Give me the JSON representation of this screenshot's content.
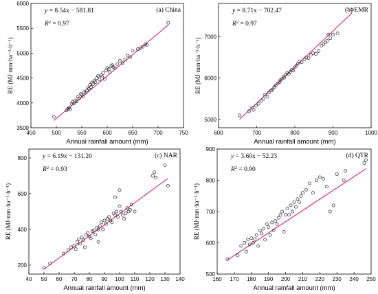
{
  "chart_data": [
    {
      "type": "scatter",
      "title": "(a) China",
      "equation": "y = 8.54x − 581.81",
      "r2": "R² = 0.97",
      "eq_y": "y",
      "eq_rhs": " = 8.54x − 581.81",
      "r2_label": "R",
      "r2_rhs": " = 0.97",
      "xlabel": "Annual rainfall amount (mm)",
      "ylabel": "RE (MJ·mm·ha⁻¹·h⁻¹)",
      "xlim": [
        450,
        750
      ],
      "ylim": [
        3500,
        6000
      ],
      "xticks": [
        450,
        500,
        550,
        600,
        650,
        700,
        750
      ],
      "yticks": [
        3500,
        4000,
        4500,
        5000,
        5500,
        6000
      ],
      "fit": {
        "slope": 8.54,
        "intercept": -581.81,
        "x_range": [
          495,
          720
        ]
      },
      "points": [
        [
          495,
          3720
        ],
        [
          520,
          3850
        ],
        [
          523,
          3880
        ],
        [
          525,
          3900
        ],
        [
          527,
          3870
        ],
        [
          530,
          3980
        ],
        [
          532,
          4020
        ],
        [
          535,
          3990
        ],
        [
          537,
          4050
        ],
        [
          540,
          4030
        ],
        [
          542,
          4120
        ],
        [
          545,
          4090
        ],
        [
          548,
          4180
        ],
        [
          550,
          4160
        ],
        [
          552,
          4130
        ],
        [
          555,
          4220
        ],
        [
          557,
          4200
        ],
        [
          560,
          4250
        ],
        [
          562,
          4300
        ],
        [
          564,
          4280
        ],
        [
          566,
          4360
        ],
        [
          568,
          4320
        ],
        [
          570,
          4410
        ],
        [
          572,
          4380
        ],
        [
          575,
          4450
        ],
        [
          577,
          4420
        ],
        [
          580,
          4500
        ],
        [
          582,
          4540
        ],
        [
          585,
          4470
        ],
        [
          588,
          4560
        ],
        [
          590,
          4530
        ],
        [
          592,
          4600
        ],
        [
          595,
          4480
        ],
        [
          598,
          4650
        ],
        [
          600,
          4700
        ],
        [
          603,
          4680
        ],
        [
          605,
          4620
        ],
        [
          608,
          4740
        ],
        [
          610,
          4760
        ],
        [
          612,
          4720
        ],
        [
          615,
          4700
        ],
        [
          620,
          4780
        ],
        [
          625,
          4850
        ],
        [
          630,
          4800
        ],
        [
          635,
          4870
        ],
        [
          640,
          4950
        ],
        [
          645,
          4920
        ],
        [
          650,
          5050
        ],
        [
          660,
          5080
        ],
        [
          665,
          5100
        ],
        [
          670,
          5130
        ],
        [
          675,
          5180
        ],
        [
          678,
          5160
        ],
        [
          720,
          5610
        ]
      ]
    },
    {
      "type": "scatter",
      "title": "(b) EMR",
      "equation": "y = 8.71x − 702.47",
      "r2": "R² = 0.97",
      "eq_y": "y",
      "eq_rhs": " = 8.71x − 702.47",
      "r2_label": "R",
      "r2_rhs": " = 0.97",
      "xlabel": "Annual rainfall amount (mm)",
      "ylabel": "RE (MJ·mm·ha⁻¹·h⁻¹)",
      "xlim": [
        600,
        1000
      ],
      "ylim": [
        4800,
        7800
      ],
      "xticks": [
        600,
        700,
        800,
        900,
        1000
      ],
      "yticks": [
        5000,
        6000,
        7000
      ],
      "fit": {
        "slope": 8.71,
        "intercept": -702.47,
        "x_range": [
          655,
          950
        ]
      },
      "points": [
        [
          655,
          5100
        ],
        [
          680,
          5200
        ],
        [
          688,
          5280
        ],
        [
          692,
          5230
        ],
        [
          698,
          5330
        ],
        [
          705,
          5380
        ],
        [
          712,
          5450
        ],
        [
          718,
          5500
        ],
        [
          722,
          5600
        ],
        [
          728,
          5550
        ],
        [
          732,
          5650
        ],
        [
          738,
          5700
        ],
        [
          742,
          5720
        ],
        [
          746,
          5780
        ],
        [
          750,
          5820
        ],
        [
          755,
          5870
        ],
        [
          760,
          5900
        ],
        [
          762,
          5950
        ],
        [
          766,
          5980
        ],
        [
          770,
          6040
        ],
        [
          772,
          6010
        ],
        [
          776,
          6080
        ],
        [
          780,
          6120
        ],
        [
          784,
          6100
        ],
        [
          788,
          6150
        ],
        [
          792,
          6200
        ],
        [
          796,
          6180
        ],
        [
          800,
          6260
        ],
        [
          804,
          6300
        ],
        [
          808,
          6350
        ],
        [
          812,
          6400
        ],
        [
          818,
          6380
        ],
        [
          825,
          6450
        ],
        [
          830,
          6500
        ],
        [
          836,
          6480
        ],
        [
          842,
          6560
        ],
        [
          848,
          6600
        ],
        [
          855,
          6580
        ],
        [
          862,
          6650
        ],
        [
          870,
          6780
        ],
        [
          875,
          6820
        ],
        [
          880,
          6860
        ],
        [
          885,
          6900
        ],
        [
          888,
          7050
        ],
        [
          893,
          6960
        ],
        [
          900,
          7050
        ],
        [
          912,
          7080
        ],
        [
          950,
          7650
        ]
      ]
    },
    {
      "type": "scatter",
      "title": "(c) NAR",
      "equation": "y = 6.19x − 131.20",
      "r2": "R² = 0.93",
      "eq_y": "y",
      "eq_rhs": " = 6.19x − 131.20",
      "r2_label": "R",
      "r2_rhs": " = 0.93",
      "xlabel": "Annual rainfall amount (mm)",
      "ylabel": "RE (MJ·mm·ha⁻¹·h⁻¹)",
      "xlim": [
        40,
        140
      ],
      "ylim": [
        150,
        850
      ],
      "xticks": [
        40,
        50,
        60,
        70,
        80,
        90,
        100,
        110,
        120,
        130,
        140
      ],
      "yticks": [
        200,
        400,
        600,
        800
      ],
      "fit": {
        "slope": 6.19,
        "intercept": -131.2,
        "x_range": [
          50,
          132
        ]
      },
      "points": [
        [
          50,
          185
        ],
        [
          54,
          210
        ],
        [
          63,
          265
        ],
        [
          66,
          285
        ],
        [
          68,
          300
        ],
        [
          70,
          310
        ],
        [
          71,
          290
        ],
        [
          72,
          330
        ],
        [
          73,
          345
        ],
        [
          74,
          320
        ],
        [
          75,
          355
        ],
        [
          76,
          340
        ],
        [
          77,
          300
        ],
        [
          78,
          370
        ],
        [
          79,
          380
        ],
        [
          80,
          360
        ],
        [
          81,
          350
        ],
        [
          82,
          390
        ],
        [
          83,
          395
        ],
        [
          84,
          370
        ],
        [
          85,
          410
        ],
        [
          86,
          400
        ],
        [
          86,
          330
        ],
        [
          87,
          420
        ],
        [
          88,
          440
        ],
        [
          89,
          400
        ],
        [
          90,
          450
        ],
        [
          91,
          430
        ],
        [
          92,
          460
        ],
        [
          93,
          470
        ],
        [
          94,
          450
        ],
        [
          95,
          440
        ],
        [
          96,
          490
        ],
        [
          97,
          480
        ],
        [
          98,
          500
        ],
        [
          99,
          470
        ],
        [
          100,
          530
        ],
        [
          101,
          500
        ],
        [
          102,
          480
        ],
        [
          103,
          460
        ],
        [
          104,
          490
        ],
        [
          105,
          520
        ],
        [
          106,
          500
        ],
        [
          107,
          510
        ],
        [
          108,
          540
        ],
        [
          100,
          620
        ],
        [
          97,
          580
        ],
        [
          110,
          500
        ],
        [
          122,
          700
        ],
        [
          123,
          720
        ],
        [
          124,
          690
        ],
        [
          130,
          760
        ],
        [
          132,
          645
        ]
      ]
    },
    {
      "type": "scatter",
      "title": "(d) QTR",
      "equation": "y = 3.60x − 52.23",
      "r2": "R² = 0.90",
      "eq_y": "y",
      "eq_rhs": " = 3.60x − 52.23",
      "r2_label": "R",
      "r2_rhs": " = 0.90",
      "xlabel": "Annual rainfall amount (mm)",
      "ylabel": "RE (MJ·mm·ha⁻¹·h⁻¹)",
      "xlim": [
        160,
        250
      ],
      "ylim": [
        500,
        900
      ],
      "xticks": [
        160,
        170,
        180,
        190,
        200,
        210,
        220,
        230,
        240,
        250
      ],
      "yticks": [
        500,
        600,
        700,
        800,
        900
      ],
      "fit": {
        "slope": 3.6,
        "intercept": -52.23,
        "x_range": [
          166,
          247
        ]
      },
      "points": [
        [
          166,
          548
        ],
        [
          172,
          560
        ],
        [
          174,
          590
        ],
        [
          176,
          600
        ],
        [
          177,
          572
        ],
        [
          178,
          610
        ],
        [
          179,
          595
        ],
        [
          180,
          615
        ],
        [
          181,
          600
        ],
        [
          182,
          612
        ],
        [
          183,
          625
        ],
        [
          184,
          590
        ],
        [
          185,
          640
        ],
        [
          186,
          630
        ],
        [
          187,
          645
        ],
        [
          188,
          610
        ],
        [
          189,
          660
        ],
        [
          190,
          650
        ],
        [
          191,
          625
        ],
        [
          192,
          665
        ],
        [
          193,
          640
        ],
        [
          194,
          670
        ],
        [
          195,
          660
        ],
        [
          196,
          680
        ],
        [
          197,
          690
        ],
        [
          198,
          700
        ],
        [
          199,
          635
        ],
        [
          200,
          690
        ],
        [
          201,
          710
        ],
        [
          202,
          690
        ],
        [
          203,
          720
        ],
        [
          204,
          700
        ],
        [
          205,
          730
        ],
        [
          206,
          715
        ],
        [
          207,
          740
        ],
        [
          208,
          730
        ],
        [
          209,
          750
        ],
        [
          210,
          760
        ],
        [
          212,
          770
        ],
        [
          214,
          790
        ],
        [
          216,
          760
        ],
        [
          218,
          800
        ],
        [
          220,
          810
        ],
        [
          222,
          805
        ],
        [
          224,
          780
        ],
        [
          226,
          700
        ],
        [
          228,
          720
        ],
        [
          230,
          820
        ],
        [
          234,
          800
        ],
        [
          235,
          830
        ],
        [
          246,
          855
        ],
        [
          247,
          865
        ]
      ]
    }
  ]
}
